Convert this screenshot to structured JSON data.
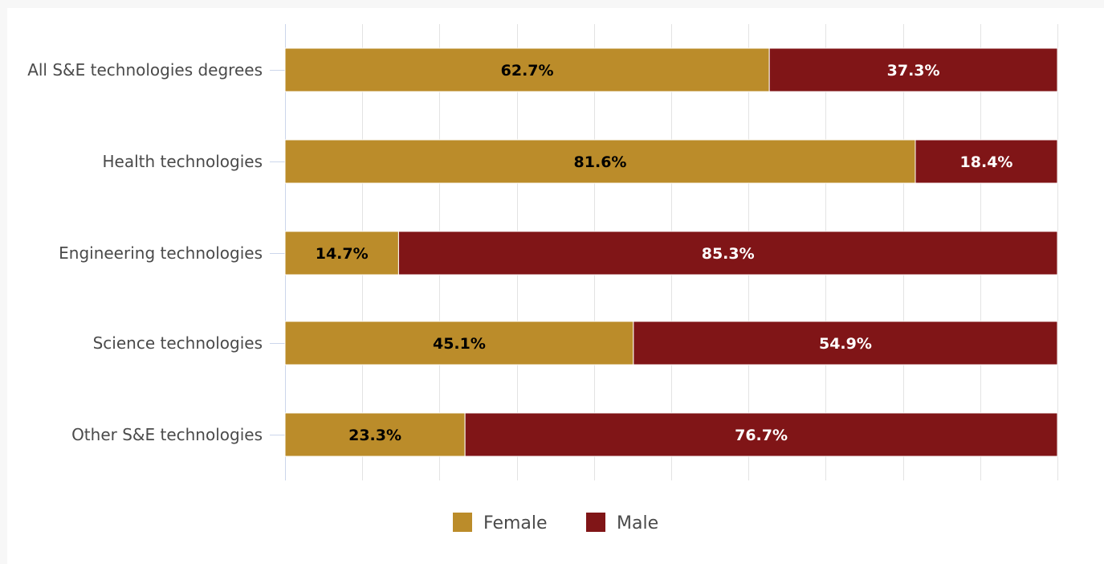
{
  "chart_data": {
    "type": "bar",
    "orientation": "horizontal",
    "stacked": true,
    "categories": [
      "All S&E technologies degrees",
      "Health technologies",
      "Engineering technologies",
      "Science technologies",
      "Other S&E technologies"
    ],
    "series": [
      {
        "name": "Female",
        "color": "#bb8c2a",
        "label_color": "#000000",
        "values": [
          62.7,
          81.6,
          14.7,
          45.1,
          23.3
        ],
        "labels": [
          "62.7%",
          "81.6%",
          "14.7%",
          "45.1%",
          "23.3%"
        ]
      },
      {
        "name": "Male",
        "color": "#801517",
        "label_color": "#ffffff",
        "values": [
          37.3,
          18.4,
          85.3,
          54.9,
          76.7
        ],
        "labels": [
          "37.3%",
          "18.4%",
          "85.3%",
          "54.9%",
          "76.7%"
        ]
      }
    ],
    "xlim": [
      0,
      100
    ],
    "grid": true,
    "legend": "bottom-center",
    "title": "",
    "xlabel": "",
    "ylabel": ""
  }
}
